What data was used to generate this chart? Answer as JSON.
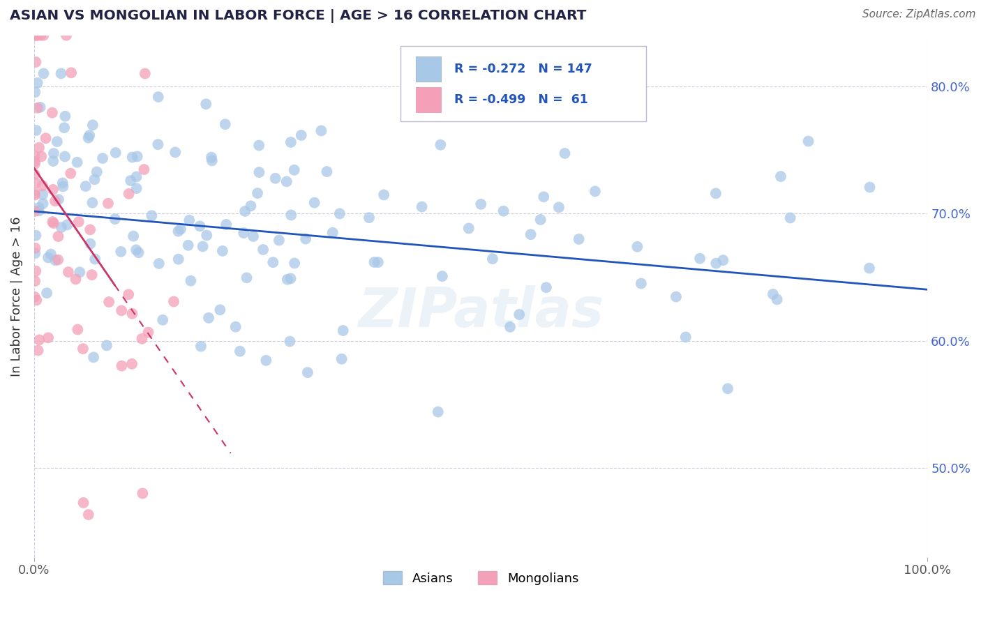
{
  "title": "ASIAN VS MONGOLIAN IN LABOR FORCE | AGE > 16 CORRELATION CHART",
  "source_text": "Source: ZipAtlas.com",
  "ylabel": "In Labor Force | Age > 16",
  "xlim": [
    0.0,
    1.0
  ],
  "ylim": [
    0.43,
    0.84
  ],
  "yticks": [
    0.5,
    0.6,
    0.7,
    0.8
  ],
  "ytick_labels": [
    "50.0%",
    "60.0%",
    "70.0%",
    "80.0%"
  ],
  "xticks": [
    0.0,
    1.0
  ],
  "xtick_labels": [
    "0.0%",
    "100.0%"
  ],
  "asian_color": "#a8c8e8",
  "mongolian_color": "#f4a0b8",
  "asian_line_color": "#2255bb",
  "mongolian_line_color": "#cc3366",
  "R_asian": -0.272,
  "N_asian": 147,
  "R_mongolian": -0.499,
  "N_mongolian": 61,
  "legend_R_color": "#2255bb",
  "legend_N_color": "#333333",
  "watermark": "ZIPatlas",
  "background_color": "#ffffff",
  "grid_color": "#ccccdd"
}
